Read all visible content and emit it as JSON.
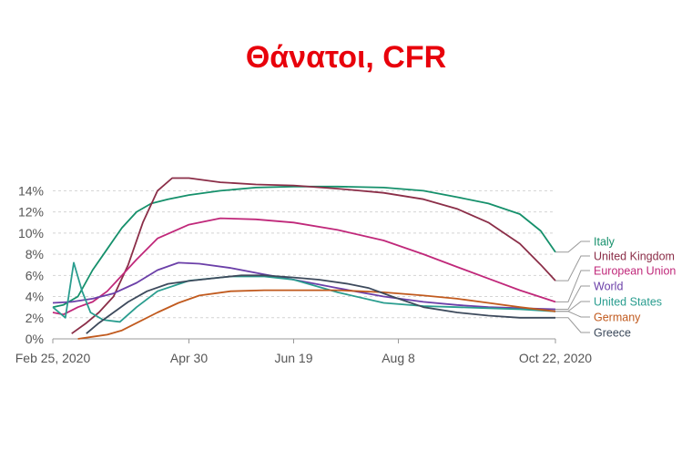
{
  "title": "Θάνατοι, CFR",
  "chart_data": {
    "type": "line",
    "title": "Θάνατοι, CFR",
    "xlabel": "",
    "ylabel": "",
    "x_ticks": [
      "Feb 25, 2020",
      "Apr 30",
      "Jun 19",
      "Aug 8",
      "Oct 22, 2020"
    ],
    "y_ticks": [
      "0%",
      "2%",
      "4%",
      "6%",
      "8%",
      "10%",
      "12%",
      "14%"
    ],
    "ylim": [
      0,
      15.5
    ],
    "x_range": [
      "2020-02-25",
      "2020-10-22"
    ],
    "grid": "horizontal dashed",
    "legend": "right",
    "series": [
      {
        "name": "Italy",
        "color": "#15906b",
        "x": [
          "2020-02-25",
          "2020-03-01",
          "2020-03-08",
          "2020-03-15",
          "2020-03-22",
          "2020-03-29",
          "2020-04-05",
          "2020-04-12",
          "2020-04-20",
          "2020-04-30",
          "2020-05-15",
          "2020-06-01",
          "2020-06-19",
          "2020-07-10",
          "2020-08-01",
          "2020-08-20",
          "2020-09-05",
          "2020-09-20",
          "2020-10-05",
          "2020-10-15",
          "2020-10-22"
        ],
        "values": [
          3.0,
          3.2,
          4.0,
          6.5,
          8.5,
          10.5,
          12.0,
          12.8,
          13.2,
          13.6,
          14.0,
          14.3,
          14.4,
          14.4,
          14.3,
          14.0,
          13.4,
          12.8,
          11.8,
          10.2,
          8.2
        ]
      },
      {
        "name": "United Kingdom",
        "color": "#8b2e48",
        "x": [
          "2020-03-05",
          "2020-03-12",
          "2020-03-18",
          "2020-03-25",
          "2020-04-01",
          "2020-04-08",
          "2020-04-15",
          "2020-04-22",
          "2020-04-30",
          "2020-05-15",
          "2020-06-01",
          "2020-06-19",
          "2020-07-10",
          "2020-08-01",
          "2020-08-20",
          "2020-09-05",
          "2020-09-20",
          "2020-10-05",
          "2020-10-15",
          "2020-10-22"
        ],
        "values": [
          0.5,
          1.5,
          2.5,
          4.0,
          7.0,
          11.0,
          14.0,
          15.2,
          15.2,
          14.8,
          14.6,
          14.5,
          14.2,
          13.8,
          13.2,
          12.3,
          11.0,
          9.0,
          7.0,
          5.5
        ]
      },
      {
        "name": "European Union",
        "color": "#c0287a",
        "x": [
          "2020-02-25",
          "2020-03-01",
          "2020-03-08",
          "2020-03-15",
          "2020-03-22",
          "2020-03-29",
          "2020-04-05",
          "2020-04-15",
          "2020-04-30",
          "2020-05-15",
          "2020-06-01",
          "2020-06-19",
          "2020-07-10",
          "2020-08-01",
          "2020-08-20",
          "2020-09-05",
          "2020-09-20",
          "2020-10-05",
          "2020-10-22"
        ],
        "values": [
          2.5,
          2.3,
          3.0,
          3.5,
          4.5,
          6.0,
          7.5,
          9.5,
          10.8,
          11.4,
          11.3,
          11.0,
          10.3,
          9.3,
          8.0,
          6.8,
          5.7,
          4.6,
          3.5
        ]
      },
      {
        "name": "World",
        "color": "#6b3fa8",
        "x": [
          "2020-02-25",
          "2020-03-05",
          "2020-03-15",
          "2020-03-25",
          "2020-04-05",
          "2020-04-15",
          "2020-04-25",
          "2020-05-05",
          "2020-05-20",
          "2020-06-05",
          "2020-06-19",
          "2020-07-10",
          "2020-08-01",
          "2020-08-20",
          "2020-09-05",
          "2020-09-20",
          "2020-10-05",
          "2020-10-22"
        ],
        "values": [
          3.4,
          3.5,
          3.8,
          4.3,
          5.3,
          6.5,
          7.2,
          7.1,
          6.7,
          6.1,
          5.6,
          4.8,
          4.0,
          3.5,
          3.2,
          3.0,
          2.9,
          2.8
        ]
      },
      {
        "name": "United States",
        "color": "#2a9d8f",
        "x": [
          "2020-02-25",
          "2020-03-02",
          "2020-03-06",
          "2020-03-10",
          "2020-03-14",
          "2020-03-20",
          "2020-03-28",
          "2020-04-05",
          "2020-04-15",
          "2020-04-30",
          "2020-05-20",
          "2020-06-05",
          "2020-06-19",
          "2020-07-10",
          "2020-08-01",
          "2020-08-20",
          "2020-09-05",
          "2020-09-20",
          "2020-10-05",
          "2020-10-22"
        ],
        "values": [
          3.0,
          2.0,
          7.2,
          4.5,
          2.5,
          1.8,
          1.6,
          3.0,
          4.5,
          5.5,
          5.9,
          5.9,
          5.6,
          4.4,
          3.4,
          3.1,
          3.0,
          2.9,
          2.8,
          2.6
        ]
      },
      {
        "name": "Germany",
        "color": "#c15a1e",
        "x": [
          "2020-03-08",
          "2020-03-15",
          "2020-03-22",
          "2020-03-29",
          "2020-04-05",
          "2020-04-15",
          "2020-04-25",
          "2020-05-05",
          "2020-05-20",
          "2020-06-05",
          "2020-06-19",
          "2020-07-10",
          "2020-08-01",
          "2020-08-20",
          "2020-09-05",
          "2020-09-20",
          "2020-10-05",
          "2020-10-22"
        ],
        "values": [
          0.0,
          0.2,
          0.4,
          0.8,
          1.5,
          2.5,
          3.4,
          4.1,
          4.5,
          4.6,
          4.6,
          4.6,
          4.4,
          4.1,
          3.8,
          3.4,
          3.0,
          2.6
        ]
      },
      {
        "name": "Greece",
        "color": "#3d4a5c",
        "x": [
          "2020-03-12",
          "2020-03-18",
          "2020-03-25",
          "2020-04-01",
          "2020-04-10",
          "2020-04-20",
          "2020-05-01",
          "2020-05-15",
          "2020-05-25",
          "2020-06-05",
          "2020-06-19",
          "2020-07-01",
          "2020-07-15",
          "2020-07-25",
          "2020-08-05",
          "2020-08-20",
          "2020-09-05",
          "2020-09-20",
          "2020-10-05",
          "2020-10-22"
        ],
        "values": [
          0.5,
          1.5,
          2.5,
          3.5,
          4.5,
          5.2,
          5.5,
          5.8,
          6.0,
          6.0,
          5.8,
          5.6,
          5.2,
          4.8,
          4.0,
          3.0,
          2.5,
          2.2,
          2.0,
          2.0
        ]
      }
    ]
  }
}
